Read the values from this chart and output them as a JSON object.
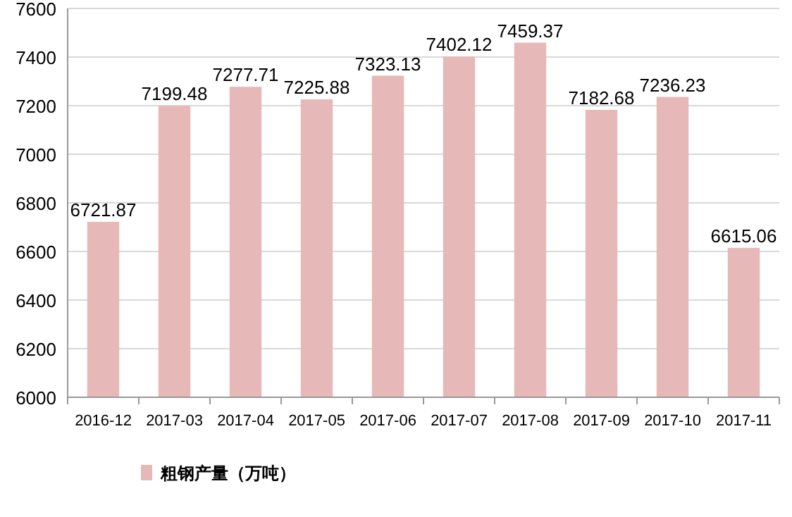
{
  "chart_data": {
    "type": "bar",
    "categories": [
      "2016-12",
      "2017-03",
      "2017-04",
      "2017-05",
      "2017-06",
      "2017-07",
      "2017-08",
      "2017-09",
      "2017-10",
      "2017-11"
    ],
    "series": [
      {
        "name": "粗钢产量（万吨）",
        "color": "#e6b9b8",
        "values": [
          6721.87,
          7199.48,
          7277.71,
          7225.88,
          7323.13,
          7402.12,
          7459.37,
          7182.68,
          7236.23,
          6615.06
        ]
      }
    ],
    "ylim": [
      6000,
      7600
    ],
    "yticks": [
      6000,
      6200,
      6400,
      6600,
      6800,
      7000,
      7200,
      7400,
      7600
    ],
    "grid": "y",
    "legend": "bottom left",
    "data_labels": true
  }
}
